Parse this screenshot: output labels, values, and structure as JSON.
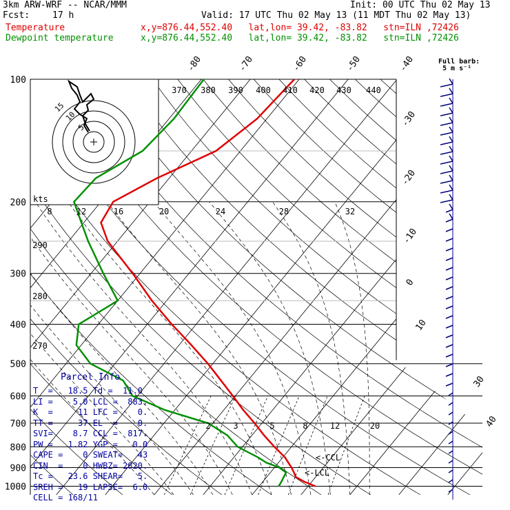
{
  "header": {
    "model": "3km ARW-WRF -- NCAR/MMM",
    "init": "Init: 00 UTC Thu 02 May 13",
    "fcst_label": "Fcst:",
    "fcst_value": "17 h",
    "valid": "Valid: 17 UTC Thu 02 May 13 (11 MDT Thu 02 May 13)",
    "temp_label": "Temperature",
    "temp_info": "x,y=876.44,552.40   lat,lon= 39.42, -83.82   stn=ILN ,72426",
    "dew_label": "Dewpoint temperature",
    "dew_info": "x,y=876.44,552.40   lat,lon= 39.42, -83.82   stn=ILN ,72426",
    "barb_title": "Full barb:",
    "barb_unit": "5 m s⁻¹"
  },
  "colors": {
    "temperature": "#e00000",
    "dewpoint": "#009000",
    "wind": "#000080",
    "info": "#0000a0"
  },
  "chart_data": {
    "type": "line",
    "pressure_ticks": [
      100,
      200,
      300,
      400,
      500,
      600,
      700,
      800,
      900,
      1000
    ],
    "skewed_temp_labels": [
      "-80",
      "-70",
      "-60",
      "-50",
      "-40",
      "-30",
      "-20",
      "-10",
      "0",
      "10",
      "30",
      "40"
    ],
    "theta_labels": [
      "370",
      "380",
      "390",
      "400",
      "410",
      "420",
      "430",
      "440",
      "290",
      "280",
      "270"
    ],
    "hodograph_kts_labels": [
      "kts",
      "8",
      "12",
      "16",
      "20",
      "24",
      "28",
      "32"
    ],
    "hodograph_ring_labels": [
      "15",
      "10",
      "5"
    ],
    "mixing_ratio_labels": [
      "2",
      "3",
      "5",
      "8",
      "12",
      "20"
    ],
    "level_labels": [
      "<-CCL",
      "<-LCL"
    ],
    "series": [
      {
        "name": "Temperature",
        "p": [
          1000,
          975,
          950,
          925,
          900,
          875,
          850,
          800,
          750,
          700,
          650,
          600,
          550,
          500,
          450,
          400,
          350,
          300,
          250,
          225,
          200,
          175,
          150,
          125,
          100
        ],
        "t": [
          21.5,
          18.5,
          16.0,
          14.8,
          13.5,
          12.0,
          10.5,
          6.5,
          2.5,
          -1.5,
          -6.0,
          -10.5,
          -15.5,
          -21.0,
          -27.5,
          -35.0,
          -43.0,
          -51.5,
          -62.0,
          -66.5,
          -67.5,
          -62.5,
          -55.0,
          -52.0,
          -51.0
        ]
      },
      {
        "name": "Dewpoint temperature",
        "p": [
          1000,
          975,
          950,
          925,
          900,
          875,
          850,
          800,
          750,
          700,
          650,
          600,
          550,
          500,
          450,
          400,
          350,
          300,
          250,
          225,
          200,
          175,
          150,
          125,
          100
        ],
        "t": [
          14.0,
          13.8,
          13.5,
          13.2,
          11.0,
          7.5,
          5.0,
          -1.0,
          -5.0,
          -11.0,
          -22.0,
          -31.0,
          -35.5,
          -45.0,
          -51.0,
          -54.0,
          -50.0,
          -57.5,
          -66.0,
          -70.5,
          -75.5,
          -75.0,
          -70.0,
          -69.0,
          -69.5
        ]
      }
    ]
  },
  "parcel_info": {
    "title": "Parcel Info",
    "rows": [
      "T  =   18.5 Td =  11.0",
      "LI =    5.0 LCL =  883.",
      "K  =     11 LFC =    0.",
      "TT =     37 EL  =    0.",
      "SVI=    8.7 CCL =  817.",
      "PW =   1.82 YGP =   0.0",
      "CAPE =    0 SWEAT=   43",
      "CIN  =    0 HWBZ= 2820.",
      "Tc =   23.6 SHEAR=   5.",
      "SREH =   19 LAPSE=  6.0",
      "CELL = 168/11"
    ]
  }
}
